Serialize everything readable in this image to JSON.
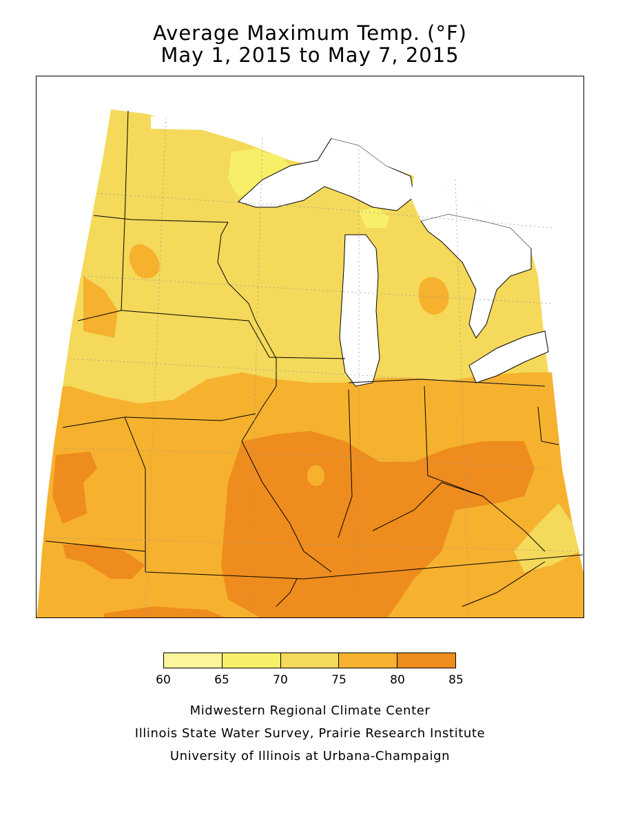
{
  "title": {
    "line1": "Average Maximum Temp. (°F)",
    "line2": "May 1, 2015 to May 7, 2015"
  },
  "map": {
    "region": "Midwest United States",
    "features": [
      "state-boundaries",
      "great-lakes",
      "temperature-contours"
    ]
  },
  "legend": {
    "ticks": [
      "60",
      "65",
      "70",
      "75",
      "80",
      "85"
    ],
    "bins": [
      {
        "range": "60-65",
        "color": "#fbf59b"
      },
      {
        "range": "65-70",
        "color": "#f8ef68"
      },
      {
        "range": "70-75",
        "color": "#f4d95a"
      },
      {
        "range": "75-80",
        "color": "#f6b12e"
      },
      {
        "range": "80-85",
        "color": "#ee8c1d"
      }
    ]
  },
  "credits": {
    "line1": "Midwestern Regional Climate Center",
    "line2": "Illinois State Water Survey, Prairie Research Institute",
    "line3": "University of Illinois at Urbana-Champaign"
  }
}
